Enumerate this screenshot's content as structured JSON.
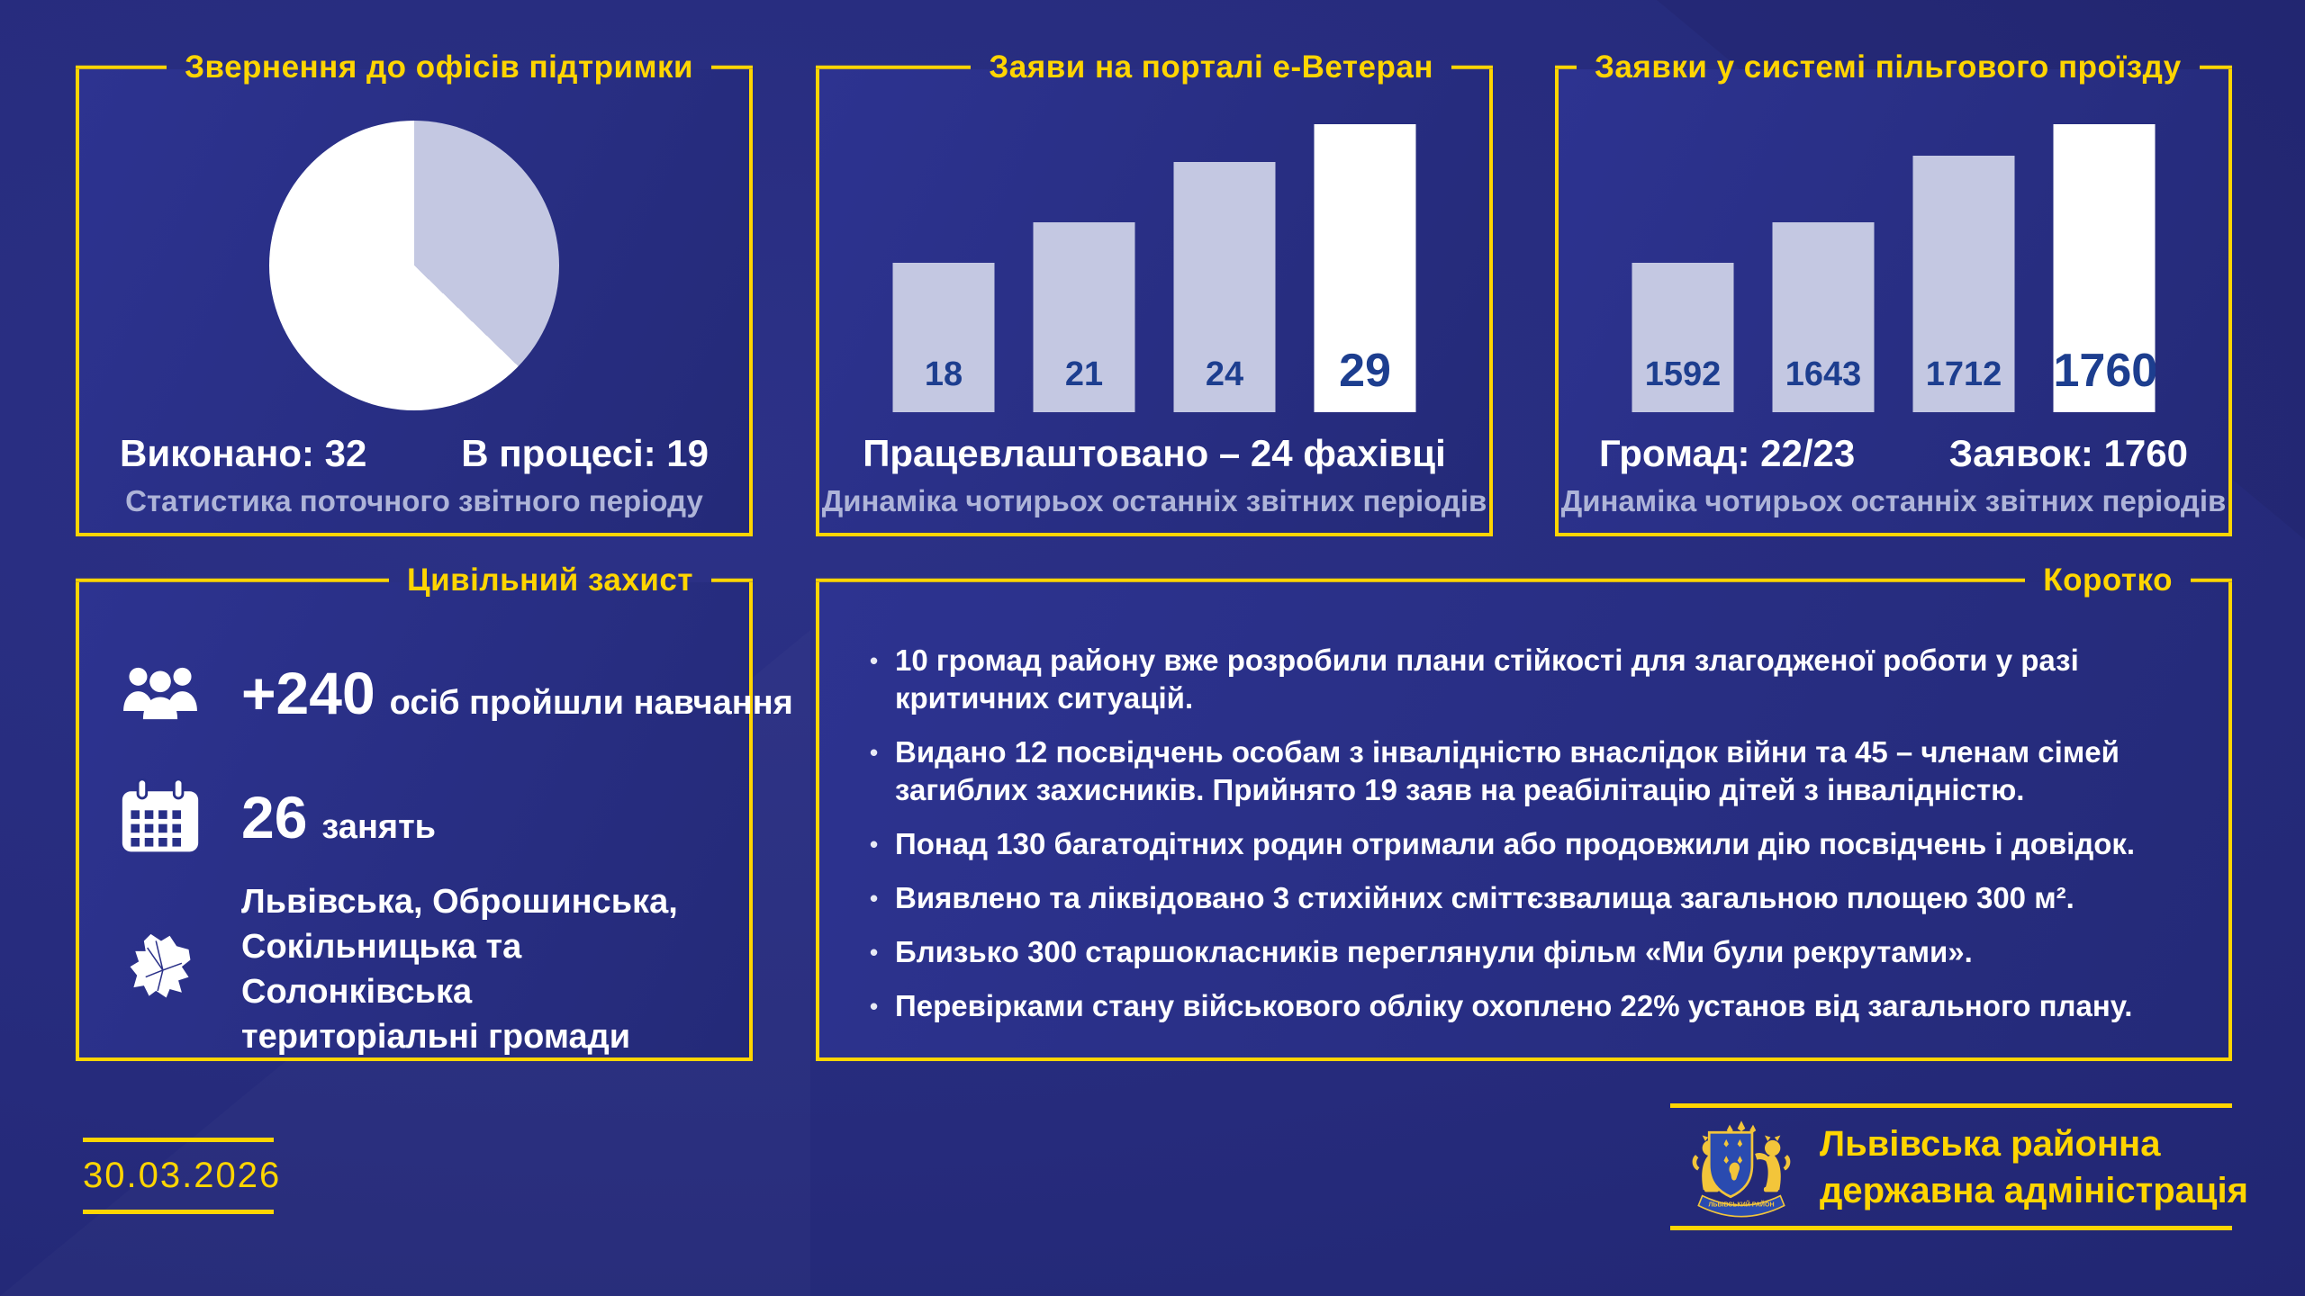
{
  "panels": {
    "support_offices": {
      "title": "Звернення до офісів підтримки",
      "stat_left": "Виконано: 32",
      "stat_right": "В процесі: 19",
      "subtitle": "Статистика поточного звітного періоду"
    },
    "eveteran": {
      "title": "Заяви на порталі е-Ветеран",
      "caption": "Працевлаштовано – 24 фахівці",
      "subtitle": "Динаміка чотирьох останніх звітних періодів"
    },
    "transit": {
      "title": "Заявки у системі пільгового проїзду",
      "stat_left": "Громад: 22/23",
      "stat_right": "Заявок: 1760",
      "subtitle": "Динаміка чотирьох останніх звітних періодів"
    },
    "civil_protection": {
      "title": "Цивільний захист",
      "item_training": {
        "icon": "people-icon",
        "big": "+240",
        "text": "осіб пройшли навчання"
      },
      "item_sessions": {
        "icon": "calendar-icon",
        "big": "26",
        "text": "занять"
      },
      "item_hromadas_lines": {
        "line1": "Львівська, Оброшинська,",
        "line2": "Сокільницька та Солонківська",
        "line3": "територіальні громади"
      }
    },
    "briefly": {
      "title": "Коротко",
      "bullets": [
        "10 громад району вже розробили плани стійкості для злагодженої роботи у разі критичних ситуацій.",
        "Видано 12 посвідчень особам з інвалідністю внаслідок війни та 45 – членам сімей загиблих захисників. Прийнято 19 заяв на реабілітацію дітей з інвалідністю.",
        "Понад 130 багатодітних родин отримали або продовжили дію посвідчень і довідок.",
        "Виявлено та ліквідовано 3 стихійних сміттєзвалища загальною площею 300 м².",
        "Близько 300 старшокласників переглянули фільм «Ми були рекрутами».",
        "Перевірками стану військового обліку охоплено 22% установ від загального плану."
      ]
    }
  },
  "footer": {
    "date": "30.03.2026",
    "org_line1": "Львівська районна",
    "org_line2": "державна адміністрація",
    "crest_ribbon": "ЛЬВІВСЬКИЙ РАЙОН"
  },
  "colors": {
    "accent_yellow": "#ffd500",
    "bar_lavender": "#c4c8e2",
    "bar_highlight": "#ffffff",
    "value_number_navy": "#1d3e8f",
    "subtitle_lavender": "#aeb4d8",
    "background_navy": "#242a78",
    "text_white": "#ffffff"
  },
  "chart_data": [
    {
      "type": "pie",
      "title": "Звернення до офісів підтримки",
      "slices": [
        {
          "label": "Виконано",
          "value": 32,
          "color": "#ffffff"
        },
        {
          "label": "В процесі",
          "value": 19,
          "color": "#c4c8e2"
        }
      ],
      "start": "second slice starts at 12 o'clock and sweeps clockwise",
      "legend_position": "below",
      "grid": false
    },
    {
      "type": "bar",
      "title": "Заяви на порталі е-Ветеран",
      "categories": [
        "",
        "",
        "",
        ""
      ],
      "values": [
        18,
        21,
        24,
        29
      ],
      "caption": "Працевлаштовано – 24 фахівці",
      "subtitle": "Динаміка чотирьох останніх звітних періодів",
      "bar_color": "#c4c8e2",
      "highlight_last_color": "#ffffff",
      "value_label_color": "#1d3e8f",
      "height_fractions": [
        0.52,
        0.66,
        0.87,
        1.0
      ],
      "grid": false,
      "value_labels": "inside-bottom"
    },
    {
      "type": "bar",
      "title": "Заявки у системі пільгового проїзду",
      "categories": [
        "",
        "",
        "",
        ""
      ],
      "values": [
        1592,
        1643,
        1712,
        1760
      ],
      "caption_left": "Громад: 22/23",
      "caption_right": "Заявок: 1760",
      "subtitle": "Динаміка чотирьох останніх звітних періодів",
      "bar_color": "#c4c8e2",
      "highlight_last_color": "#ffffff",
      "value_label_color": "#1d3e8f",
      "height_fractions": [
        0.52,
        0.66,
        0.89,
        1.0
      ],
      "grid": false,
      "value_labels": "inside-bottom"
    }
  ]
}
